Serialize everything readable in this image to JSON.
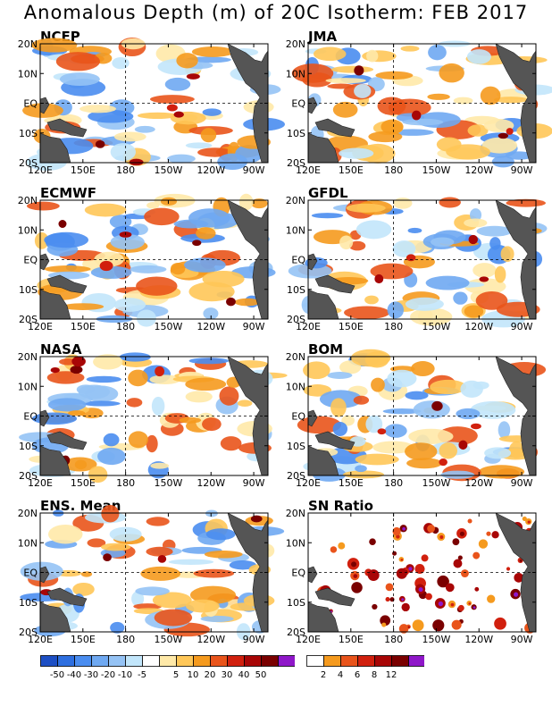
{
  "title": "Anomalous Depth (m) of 20C Isotherm: FEB 2017",
  "colors": {
    "land": "#555555",
    "dash": "#000000",
    "anomaly_scale": [
      "#1d4fc4",
      "#2e6fe0",
      "#4a8df0",
      "#6fa9f2",
      "#95c3f5",
      "#c2e6fb",
      "#ffffff",
      "#ffe9a8",
      "#ffc758",
      "#f59a1e",
      "#e9541b",
      "#d1200e",
      "#a80606",
      "#7a0000",
      "#8f17c9"
    ],
    "sn_scale": [
      "#ffffff",
      "#f59a1e",
      "#e9541b",
      "#d1200e",
      "#a80606",
      "#7a0000",
      "#8f17c9"
    ]
  },
  "axes": {
    "x_ticks": [
      "120E",
      "150E",
      "180",
      "150W",
      "120W",
      "90W"
    ],
    "y_ticks": [
      "20N",
      "10N",
      "EQ",
      "10S",
      "20S"
    ]
  },
  "colorbars": {
    "anomaly_labels": [
      "-50",
      "-40",
      "-30",
      "-20",
      "-10",
      "-5",
      "5",
      "10",
      "20",
      "30",
      "40",
      "50"
    ],
    "sn_labels": [
      "2",
      "4",
      "6",
      "8",
      "12"
    ]
  },
  "chart_data": [
    {
      "type": "heatmap",
      "title": "NCEP",
      "xlabel": "",
      "ylabel": "",
      "x_range": [
        "120E",
        "80W"
      ],
      "y_range": [
        "20S",
        "20N"
      ],
      "values_summary": "weak anomalies; negative (blue) across central and eastern tropics, positive (orange) near 150E-180 south of equator"
    },
    {
      "type": "heatmap",
      "title": "JMA",
      "xlabel": "",
      "ylabel": "",
      "x_range": [
        "120E",
        "80W"
      ],
      "y_range": [
        "20S",
        "20N"
      ],
      "values_summary": "positive (orange) anomalies dominant in western-central Pacific and 10S-20S near 90W"
    },
    {
      "type": "heatmap",
      "title": "ECMWF",
      "xlabel": "",
      "ylabel": "",
      "x_range": [
        "120E",
        "80W"
      ],
      "y_range": [
        "20S",
        "20N"
      ],
      "values_summary": "positive anomalies north of equator and south of 10S; negative patches in western equatorial band"
    },
    {
      "type": "heatmap",
      "title": "GFDL",
      "xlabel": "",
      "ylabel": "",
      "x_range": [
        "120E",
        "80W"
      ],
      "y_range": [
        "20S",
        "20N"
      ],
      "values_summary": "mixed; strong positive near 10N 130E and 15S 90W"
    },
    {
      "type": "heatmap",
      "title": "NASA",
      "xlabel": "",
      "ylabel": "",
      "x_range": [
        "120E",
        "80W"
      ],
      "y_range": [
        "20S",
        "20N"
      ],
      "values_summary": "negative zonal bands near 10N and 10S; strong positive near 20N 80W and 20S 90W"
    },
    {
      "type": "heatmap",
      "title": "BOM",
      "xlabel": "",
      "ylabel": "",
      "x_range": [
        "120E",
        "80W"
      ],
      "y_range": [
        "20S",
        "20N"
      ],
      "values_summary": "positive anomalies south of equator 160E-120W, strong positive near 20S 90W"
    },
    {
      "type": "heatmap",
      "title": "ENS. Mean",
      "xlabel": "",
      "ylabel": "",
      "x_range": [
        "120E",
        "80W"
      ],
      "y_range": [
        "20S",
        "20N"
      ],
      "values_summary": "weak positive in western/central south Pacific, weak negative in eastern equatorial band"
    },
    {
      "type": "heatmap",
      "title": "SN Ratio",
      "xlabel": "",
      "ylabel": "",
      "x_range": [
        "120E",
        "80W"
      ],
      "y_range": [
        "20S",
        "20N"
      ],
      "values_summary": "scattered patches of SN 2-12, densest near 180 south of equator"
    }
  ]
}
